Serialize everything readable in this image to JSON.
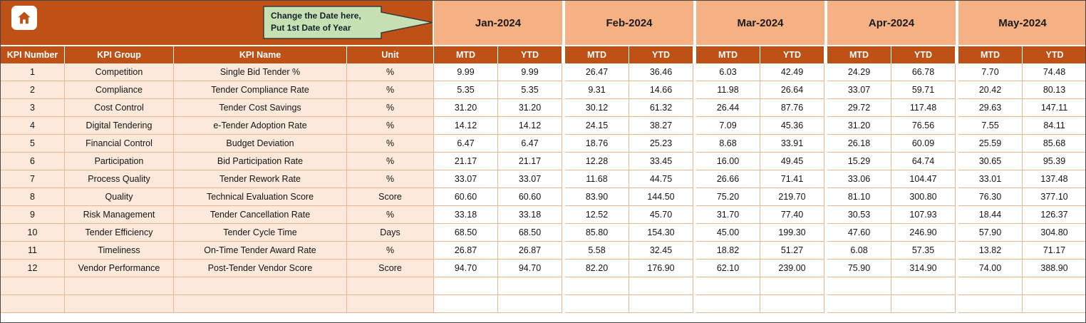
{
  "banner": {
    "home_icon": "home-icon",
    "callout": {
      "line1": "Change the Date here,",
      "line2": "Put 1st Date of Year"
    }
  },
  "months": [
    "Jan-2024",
    "Feb-2024",
    "Mar-2024",
    "Apr-2024",
    "May-2024"
  ],
  "table": {
    "column_headers": [
      "KPI Number",
      "KPI Group",
      "KPI Name",
      "Unit"
    ],
    "period_headers": {
      "mtd": "MTD",
      "ytd": "YTD"
    },
    "rows": [
      {
        "number": "1",
        "group": "Competition",
        "name": "Single Bid Tender %",
        "unit": "%",
        "values": [
          "9.99",
          "9.99",
          "26.47",
          "36.46",
          "6.03",
          "42.49",
          "24.29",
          "66.78",
          "7.70",
          "74.48"
        ]
      },
      {
        "number": "2",
        "group": "Compliance",
        "name": "Tender Compliance Rate",
        "unit": "%",
        "values": [
          "5.35",
          "5.35",
          "9.31",
          "14.66",
          "11.98",
          "26.64",
          "33.07",
          "59.71",
          "20.42",
          "80.13"
        ]
      },
      {
        "number": "3",
        "group": "Cost Control",
        "name": "Tender Cost Savings",
        "unit": "%",
        "values": [
          "31.20",
          "31.20",
          "30.12",
          "61.32",
          "26.44",
          "87.76",
          "29.72",
          "117.48",
          "29.63",
          "147.11"
        ]
      },
      {
        "number": "4",
        "group": "Digital Tendering",
        "name": "e-Tender Adoption Rate",
        "unit": "%",
        "values": [
          "14.12",
          "14.12",
          "24.15",
          "38.27",
          "7.09",
          "45.36",
          "31.20",
          "76.56",
          "7.55",
          "84.11"
        ]
      },
      {
        "number": "5",
        "group": "Financial Control",
        "name": "Budget Deviation",
        "unit": "%",
        "values": [
          "6.47",
          "6.47",
          "18.76",
          "25.23",
          "8.68",
          "33.91",
          "26.18",
          "60.09",
          "25.59",
          "85.68"
        ]
      },
      {
        "number": "6",
        "group": "Participation",
        "name": "Bid Participation Rate",
        "unit": "%",
        "values": [
          "21.17",
          "21.17",
          "12.28",
          "33.45",
          "16.00",
          "49.45",
          "15.29",
          "64.74",
          "30.65",
          "95.39"
        ]
      },
      {
        "number": "7",
        "group": "Process Quality",
        "name": "Tender Rework Rate",
        "unit": "%",
        "values": [
          "33.07",
          "33.07",
          "11.68",
          "44.75",
          "26.66",
          "71.41",
          "33.06",
          "104.47",
          "33.01",
          "137.48"
        ]
      },
      {
        "number": "8",
        "group": "Quality",
        "name": "Technical Evaluation Score",
        "unit": "Score",
        "values": [
          "60.60",
          "60.60",
          "83.90",
          "144.50",
          "75.20",
          "219.70",
          "81.10",
          "300.80",
          "76.30",
          "377.10"
        ]
      },
      {
        "number": "9",
        "group": "Risk Management",
        "name": "Tender Cancellation Rate",
        "unit": "%",
        "values": [
          "33.18",
          "33.18",
          "12.52",
          "45.70",
          "31.70",
          "77.40",
          "30.53",
          "107.93",
          "18.44",
          "126.37"
        ]
      },
      {
        "number": "10",
        "group": "Tender Efficiency",
        "name": "Tender Cycle Time",
        "unit": "Days",
        "values": [
          "68.50",
          "68.50",
          "85.80",
          "154.30",
          "45.00",
          "199.30",
          "47.60",
          "246.90",
          "57.90",
          "304.80"
        ]
      },
      {
        "number": "11",
        "group": "Timeliness",
        "name": "On-Time Tender Award Rate",
        "unit": "%",
        "values": [
          "26.87",
          "26.87",
          "5.58",
          "32.45",
          "18.82",
          "51.27",
          "6.08",
          "57.35",
          "13.82",
          "71.17"
        ]
      },
      {
        "number": "12",
        "group": "Vendor Performance",
        "name": "Post-Tender Vendor Score",
        "unit": "Score",
        "values": [
          "94.70",
          "94.70",
          "82.20",
          "176.90",
          "62.10",
          "239.00",
          "75.90",
          "314.90",
          "74.00",
          "388.90"
        ]
      }
    ],
    "empty_rows": 2
  },
  "colors": {
    "header_dark": "#BF5117",
    "month_band": "#F5B183",
    "left_fill": "#FCE9DC",
    "grid_line": "#E7B890",
    "callout_fill": "#C6E0B4"
  }
}
